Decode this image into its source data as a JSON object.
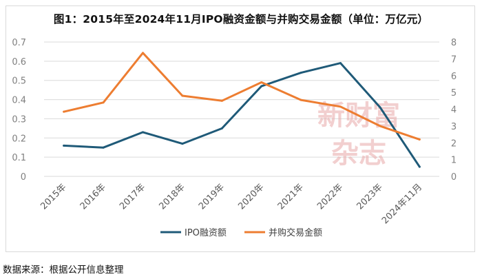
{
  "title": "图1：2015年至2024年11月IPO融资金额与并购交易金额（单位：万亿元）",
  "source": "数据来源：根据公开信息整理",
  "watermark": [
    "新财富",
    "杂志"
  ],
  "colors": {
    "ipo": "#1f5a78",
    "ma": "#ed7d31",
    "grid": "#d9d9d9",
    "watermark": "#e8a8a8"
  },
  "chart_data": {
    "type": "line",
    "categories": [
      "2015年",
      "2016年",
      "2017年",
      "2018年",
      "2019年",
      "2020年",
      "2021年",
      "2022年",
      "2023年",
      "2024年11月"
    ],
    "series": [
      {
        "name": "IPO融资额",
        "axis": "left",
        "color": "#1f5a78",
        "values": [
          0.16,
          0.15,
          0.23,
          0.17,
          0.25,
          0.47,
          0.54,
          0.59,
          0.36,
          0.05
        ]
      },
      {
        "name": "并购交易金额",
        "axis": "right",
        "color": "#ed7d31",
        "values": [
          3.85,
          4.4,
          7.35,
          4.8,
          4.5,
          5.6,
          4.55,
          4.15,
          3.0,
          2.2
        ]
      }
    ],
    "y_left": {
      "min": 0,
      "max": 0.7,
      "ticks": [
        "0",
        "0.1",
        "0.2",
        "0.3",
        "0.4",
        "0.5",
        "0.6",
        "0.7"
      ]
    },
    "y_right": {
      "min": 0,
      "max": 8,
      "ticks": [
        "0",
        "1",
        "2",
        "3",
        "4",
        "5",
        "6",
        "7",
        "8"
      ]
    },
    "grid": "horizontal",
    "legend": "bottom"
  }
}
